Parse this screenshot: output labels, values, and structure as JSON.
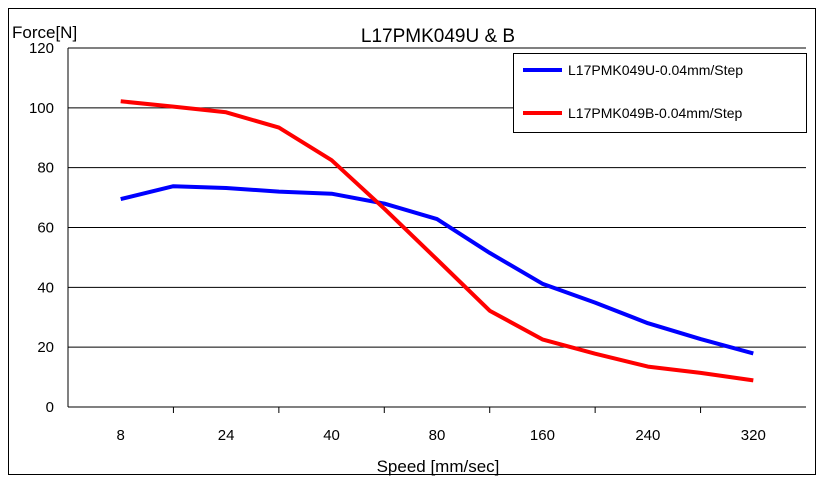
{
  "chart_data": {
    "type": "line",
    "title": "L17PMK049U & B",
    "ylabel": "Force[N]",
    "xlabel": "Speed [mm/sec]",
    "ylim": [
      0,
      120
    ],
    "yticks": [
      "0",
      "20",
      "40",
      "60",
      "80",
      "100",
      "120"
    ],
    "xlim": [
      0,
      7
    ],
    "xticks": [
      {
        "pos": 0,
        "label": "8"
      },
      {
        "pos": 1,
        "label": "24"
      },
      {
        "pos": 2,
        "label": "40"
      },
      {
        "pos": 3,
        "label": "80"
      },
      {
        "pos": 4,
        "label": "160"
      },
      {
        "pos": 5,
        "label": "240"
      },
      {
        "pos": 6,
        "label": "320"
      }
    ],
    "grid": "horizontal",
    "legend_position": "top-right",
    "series": [
      {
        "name": "L17PMK049U-0.04mm/Step",
        "color": "#0000ff",
        "points": [
          {
            "x": 0,
            "y": 69.5
          },
          {
            "x": 0.5,
            "y": 73.8
          },
          {
            "x": 1,
            "y": 73.2
          },
          {
            "x": 1.5,
            "y": 72.0
          },
          {
            "x": 2,
            "y": 71.3
          },
          {
            "x": 2.5,
            "y": 68.0
          },
          {
            "x": 3,
            "y": 62.8
          },
          {
            "x": 3.5,
            "y": 51.5
          },
          {
            "x": 4,
            "y": 41.2
          },
          {
            "x": 4.5,
            "y": 34.9
          },
          {
            "x": 5,
            "y": 28.0
          },
          {
            "x": 5.5,
            "y": 22.7
          },
          {
            "x": 6,
            "y": 17.9
          }
        ]
      },
      {
        "name": "L17PMK049B-0.04mm/Step",
        "color": "#ff0000",
        "points": [
          {
            "x": 0,
            "y": 102.2
          },
          {
            "x": 0.5,
            "y": 100.4
          },
          {
            "x": 1,
            "y": 98.5
          },
          {
            "x": 1.5,
            "y": 93.4
          },
          {
            "x": 2,
            "y": 82.5
          },
          {
            "x": 2.5,
            "y": 66.3
          },
          {
            "x": 3,
            "y": 49.3
          },
          {
            "x": 3.5,
            "y": 32.2
          },
          {
            "x": 4,
            "y": 22.6
          },
          {
            "x": 4.5,
            "y": 17.8
          },
          {
            "x": 5,
            "y": 13.5
          },
          {
            "x": 5.5,
            "y": 11.4
          },
          {
            "x": 6,
            "y": 8.9
          }
        ]
      }
    ]
  }
}
